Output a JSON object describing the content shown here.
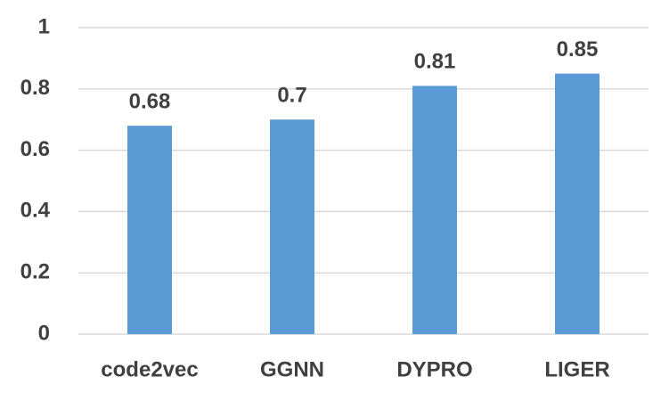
{
  "chart_data": {
    "type": "bar",
    "categories": [
      "code2vec",
      "GGNN",
      "DYPRO",
      "LIGER"
    ],
    "values": [
      0.68,
      0.7,
      0.81,
      0.85
    ],
    "color": "#5b9bd5",
    "ylim": [
      0,
      1
    ],
    "yticks": [
      0,
      0.2,
      0.4,
      0.6,
      0.8,
      1
    ],
    "grid": true
  }
}
